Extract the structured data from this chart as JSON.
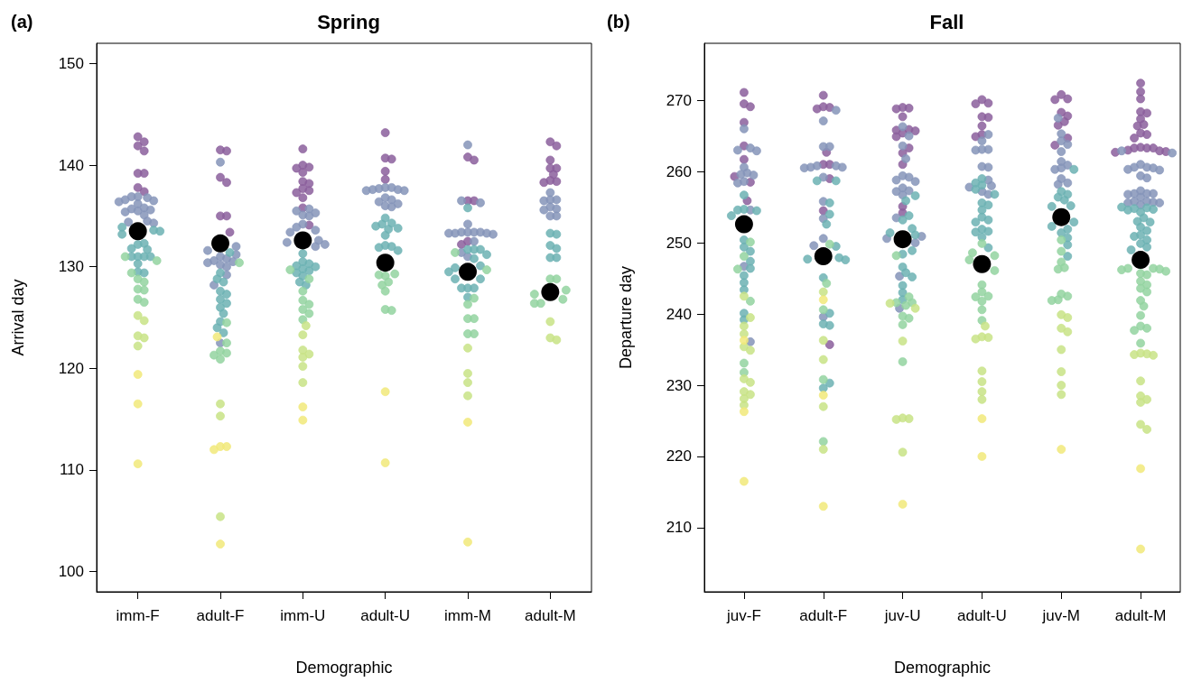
{
  "chart_data": [
    {
      "type": "scatter",
      "title": "Spring",
      "xlabel": "Demographic",
      "ylabel": "Arrival day",
      "annotations": [
        "(a)"
      ],
      "categories": [
        "imm-F",
        "adult-F",
        "imm-U",
        "adult-U",
        "imm-M",
        "adult-M"
      ],
      "ylim": [
        98,
        152
      ],
      "yticks": [
        100,
        110,
        120,
        130,
        140,
        150
      ],
      "grid": false,
      "marker": "circle",
      "series": [
        {
          "color": "#8b5f9c",
          "x": [
            "imm-F",
            "imm-F",
            "imm-F",
            "imm-F",
            "imm-F",
            "imm-F",
            "imm-F",
            "imm-F",
            "adult-F",
            "adult-F",
            "adult-F",
            "adult-F",
            "adult-F",
            "adult-F",
            "adult-F",
            "imm-U",
            "imm-U",
            "imm-U",
            "imm-U",
            "imm-U",
            "imm-U",
            "imm-U",
            "imm-U",
            "imm-U",
            "imm-U",
            "imm-U",
            "imm-U",
            "imm-U",
            "adult-U",
            "adult-U",
            "adult-U",
            "adult-U",
            "adult-U",
            "imm-M",
            "imm-M",
            "imm-M",
            "imm-M",
            "imm-M",
            "imm-M",
            "adult-M",
            "adult-M",
            "adult-M",
            "adult-M",
            "adult-M",
            "adult-M",
            "adult-M",
            "adult-M",
            "adult-M"
          ],
          "values": [
            142.8,
            142.3,
            141.9,
            141.4,
            139.2,
            139.2,
            137.8,
            137.4,
            141.5,
            141.4,
            138.8,
            138.3,
            135.0,
            135.0,
            133.4,
            141.6,
            140.0,
            139.8,
            139.7,
            139.3,
            138.4,
            138.2,
            137.7,
            137.5,
            137.3,
            136.8,
            135.8,
            134.1,
            143.2,
            140.7,
            140.6,
            139.4,
            138.6,
            140.8,
            140.5,
            136.5,
            136.5,
            132.5,
            132.2,
            142.3,
            141.9,
            140.5,
            139.7,
            139.7,
            139.1,
            138.5,
            138.4,
            138.3
          ]
        },
        {
          "color": "#8594b9",
          "x": [
            "imm-F",
            "imm-F",
            "imm-F",
            "imm-F",
            "imm-F",
            "imm-F",
            "imm-F",
            "imm-F",
            "imm-F",
            "imm-F",
            "imm-F",
            "imm-F",
            "imm-F",
            "imm-F",
            "imm-F",
            "imm-F",
            "adult-F",
            "adult-F",
            "adult-F",
            "adult-F",
            "adult-F",
            "adult-F",
            "adult-F",
            "adult-F",
            "adult-F",
            "adult-F",
            "adult-F",
            "adult-F",
            "adult-F",
            "adult-F",
            "imm-U",
            "imm-U",
            "imm-U",
            "imm-U",
            "imm-U",
            "imm-U",
            "imm-U",
            "imm-U",
            "imm-U",
            "imm-U",
            "imm-U",
            "imm-U",
            "imm-U",
            "adult-U",
            "adult-U",
            "adult-U",
            "adult-U",
            "adult-U",
            "adult-U",
            "adult-U",
            "adult-U",
            "adult-U",
            "adult-U",
            "adult-U",
            "adult-U",
            "adult-U",
            "imm-M",
            "imm-M",
            "imm-M",
            "imm-M",
            "imm-M",
            "imm-M",
            "imm-M",
            "imm-M",
            "imm-M",
            "imm-M",
            "imm-M",
            "imm-M",
            "imm-M",
            "imm-M",
            "imm-M",
            "adult-M",
            "adult-M",
            "adult-M",
            "adult-M",
            "adult-M",
            "adult-M",
            "adult-M",
            "adult-M",
            "adult-M"
          ],
          "values": [
            136.9,
            136.8,
            136.6,
            136.5,
            136.9,
            136.4,
            136.2,
            135.8,
            135.7,
            135.6,
            135.5,
            135.4,
            135.1,
            134.5,
            134.4,
            134.3,
            140.3,
            132.0,
            131.6,
            131.2,
            131.0,
            130.8,
            130.6,
            130.5,
            130.4,
            130.2,
            130.0,
            129.2,
            128.2,
            122.5,
            135.7,
            135.5,
            135.3,
            135.1,
            135.0,
            134.2,
            133.9,
            133.6,
            133.4,
            132.6,
            132.4,
            132.0,
            132.2,
            137.8,
            137.7,
            137.6,
            137.5,
            137.5,
            137.6,
            137.8,
            136.8,
            136.6,
            136.4,
            136.2,
            136.0,
            135.9,
            142.0,
            136.5,
            136.3,
            134.2,
            133.4,
            133.4,
            133.4,
            133.4,
            133.3,
            133.2,
            133.3,
            133.3,
            132.5,
            131.4,
            131.0,
            137.3,
            136.6,
            136.5,
            136.6,
            135.9,
            135.6,
            135.7,
            135.0,
            135.0
          ]
        },
        {
          "color": "#6cb2b3",
          "x": [
            "imm-F",
            "imm-F",
            "imm-F",
            "imm-F",
            "imm-F",
            "imm-F",
            "imm-F",
            "imm-F",
            "imm-F",
            "imm-F",
            "imm-F",
            "imm-F",
            "imm-F",
            "imm-F",
            "imm-F",
            "adult-F",
            "adult-F",
            "adult-F",
            "adult-F",
            "adult-F",
            "adult-F",
            "adult-F",
            "adult-F",
            "adult-F",
            "adult-F",
            "adult-F",
            "adult-F",
            "adult-F",
            "imm-U",
            "imm-U",
            "imm-U",
            "imm-U",
            "imm-U",
            "imm-U",
            "imm-U",
            "imm-U",
            "imm-U",
            "imm-U",
            "imm-U",
            "adult-U",
            "adult-U",
            "adult-U",
            "adult-U",
            "adult-U",
            "adult-U",
            "adult-U",
            "adult-U",
            "adult-U",
            "adult-U",
            "adult-U",
            "imm-M",
            "imm-M",
            "imm-M",
            "imm-M",
            "imm-M",
            "imm-M",
            "imm-M",
            "imm-M",
            "imm-M",
            "imm-M",
            "imm-M",
            "imm-M",
            "imm-M",
            "imm-M",
            "imm-M",
            "adult-M",
            "adult-M",
            "adult-M",
            "adult-M",
            "adult-M",
            "adult-M"
          ],
          "values": [
            133.9,
            133.6,
            133.5,
            133.2,
            132.3,
            132.2,
            131.8,
            131.7,
            131.0,
            131.0,
            131.0,
            131.0,
            130.3,
            129.5,
            129.4,
            131.4,
            129.4,
            128.8,
            128.5,
            127.6,
            127.3,
            126.8,
            126.4,
            126.0,
            125.4,
            124.6,
            124.0,
            123.5,
            131.3,
            130.5,
            130.3,
            130.1,
            130.0,
            129.8,
            129.6,
            129.4,
            129.1,
            128.5,
            128.2,
            134.8,
            134.3,
            134.2,
            134.0,
            133.8,
            133.7,
            133.1,
            132.1,
            132.0,
            131.9,
            131.6,
            135.8,
            131.7,
            131.7,
            131.7,
            131.2,
            130.8,
            130.1,
            129.9,
            129.5,
            128.8,
            128.8,
            127.9,
            127.9,
            127.9,
            127.0,
            133.3,
            133.2,
            132.1,
            131.8,
            130.9,
            130.9
          ]
        },
        {
          "color": "#93d3a0",
          "x": [
            "imm-F",
            "imm-F",
            "imm-F",
            "imm-F",
            "imm-F",
            "imm-F",
            "imm-F",
            "imm-F",
            "imm-F",
            "adult-F",
            "adult-F",
            "adult-F",
            "adult-F",
            "adult-F",
            "adult-F",
            "adult-F",
            "imm-U",
            "imm-U",
            "imm-U",
            "imm-U",
            "imm-U",
            "imm-U",
            "imm-U",
            "imm-U",
            "adult-U",
            "adult-U",
            "adult-U",
            "adult-U",
            "adult-U",
            "adult-U",
            "adult-U",
            "adult-U",
            "imm-M",
            "imm-M",
            "imm-M",
            "imm-M",
            "imm-M",
            "imm-M",
            "imm-M",
            "imm-M",
            "adult-M",
            "adult-M",
            "adult-M",
            "adult-M",
            "adult-M",
            "adult-M",
            "adult-M"
          ],
          "values": [
            131.0,
            130.6,
            129.4,
            128.8,
            128.5,
            127.8,
            127.7,
            126.8,
            126.5,
            130.4,
            124.5,
            122.5,
            121.7,
            121.5,
            121.3,
            120.9,
            129.7,
            128.8,
            127.6,
            126.7,
            126.3,
            125.8,
            125.4,
            124.8,
            129.3,
            129.2,
            129.1,
            128.5,
            128.2,
            127.6,
            125.8,
            125.7,
            131.4,
            129.7,
            126.9,
            126.3,
            124.9,
            124.9,
            123.4,
            123.4,
            128.8,
            128.8,
            127.7,
            127.3,
            126.8,
            126.4,
            126.4
          ]
        },
        {
          "color": "#c8e386",
          "x": [
            "imm-F",
            "imm-F",
            "imm-F",
            "imm-F",
            "imm-F",
            "adult-F",
            "adult-F",
            "adult-F",
            "imm-U",
            "imm-U",
            "imm-U",
            "imm-U",
            "imm-U",
            "imm-U",
            "imm-U",
            "imm-M",
            "imm-M",
            "imm-M",
            "imm-M",
            "adult-M",
            "adult-M",
            "adult-M"
          ],
          "values": [
            125.2,
            124.7,
            123.2,
            123.0,
            122.2,
            116.5,
            115.3,
            105.4,
            124.2,
            123.3,
            121.8,
            121.4,
            121.1,
            120.2,
            118.6,
            122.0,
            119.5,
            118.6,
            117.3,
            124.6,
            123.0,
            122.8
          ]
        },
        {
          "color": "#f1e97a",
          "x": [
            "imm-F",
            "imm-F",
            "imm-F",
            "adult-F",
            "adult-F",
            "adult-F",
            "adult-F",
            "adult-F",
            "imm-U",
            "imm-U",
            "adult-U",
            "adult-U",
            "imm-M",
            "imm-M"
          ],
          "values": [
            119.4,
            116.5,
            110.6,
            123.1,
            112.3,
            112.0,
            112.3,
            102.7,
            116.2,
            114.9,
            117.7,
            110.7,
            114.7,
            102.9
          ]
        },
        {
          "type": "bubble",
          "color": "#000000",
          "x": [
            "imm-F",
            "adult-F",
            "imm-U",
            "adult-U",
            "imm-M",
            "adult-M"
          ],
          "values": [
            133.5,
            132.3,
            132.6,
            130.4,
            129.5,
            127.5
          ],
          "sizes": [
            1,
            1,
            1,
            1,
            1,
            1
          ]
        }
      ]
    },
    {
      "type": "scatter",
      "title": "Fall",
      "xlabel": "Demographic",
      "ylabel": "Departure day",
      "annotations": [
        "(b)"
      ],
      "categories": [
        "juv-F",
        "adult-F",
        "juv-U",
        "adult-U",
        "juv-M",
        "adult-M"
      ],
      "ylim": [
        201,
        278
      ],
      "yticks": [
        210,
        220,
        230,
        240,
        250,
        260,
        270
      ],
      "grid": false,
      "marker": "circle",
      "series": [
        {
          "color": "#8b5f9c",
          "x": [
            "juv-F",
            "juv-F",
            "juv-F",
            "juv-F",
            "juv-F",
            "juv-F",
            "juv-F",
            "juv-F",
            "juv-F",
            "adult-F",
            "adult-F",
            "adult-F",
            "adult-F",
            "adult-F",
            "adult-F",
            "adult-F",
            "adult-F",
            "adult-F",
            "adult-F",
            "juv-U",
            "juv-U",
            "juv-U",
            "juv-U",
            "juv-U",
            "juv-U",
            "juv-U",
            "juv-U",
            "juv-U",
            "juv-U",
            "juv-U",
            "juv-U",
            "juv-U",
            "juv-U",
            "adult-U",
            "adult-U",
            "adult-U",
            "adult-U",
            "adult-U",
            "adult-U",
            "adult-U",
            "adult-U",
            "juv-M",
            "juv-M",
            "juv-M",
            "juv-M",
            "juv-M",
            "juv-M",
            "juv-M",
            "juv-M",
            "juv-M",
            "adult-M",
            "adult-M",
            "adult-M",
            "adult-M",
            "adult-M",
            "adult-M",
            "adult-M",
            "adult-M",
            "adult-M",
            "adult-M",
            "adult-M",
            "adult-M",
            "adult-M",
            "adult-M",
            "adult-M",
            "adult-M",
            "adult-M",
            "adult-M",
            "adult-M"
          ],
          "values": [
            271.1,
            269.5,
            269.1,
            266.9,
            263.6,
            261.7,
            259.3,
            258.5,
            255.9,
            270.7,
            269.0,
            268.8,
            269.1,
            262.7,
            261.0,
            261.0,
            259.0,
            254.5,
            235.7,
            269.0,
            268.9,
            268.8,
            267.7,
            265.9,
            265.7,
            265.4,
            264.9,
            265.8,
            263.3,
            262.6,
            261.0,
            255.1,
            254.2,
            270.1,
            269.6,
            269.5,
            267.6,
            267.7,
            266.4,
            265.2,
            264.9,
            270.8,
            270.2,
            270.1,
            268.3,
            267.8,
            267.0,
            266.5,
            264.7,
            263.7,
            272.4,
            271.2,
            270.2,
            268.4,
            268.2,
            267.4,
            266.6,
            266.4,
            265.4,
            265.2,
            264.7,
            263.4,
            263.3,
            262.9,
            262.7,
            263.3,
            262.8,
            263.0,
            263.3
          ]
        },
        {
          "color": "#8594b9",
          "x": [
            "juv-F",
            "juv-F",
            "juv-F",
            "juv-F",
            "juv-F",
            "juv-F",
            "juv-F",
            "juv-F",
            "juv-F",
            "juv-F",
            "juv-F",
            "juv-F",
            "juv-F",
            "adult-F",
            "adult-F",
            "adult-F",
            "adult-F",
            "adult-F",
            "adult-F",
            "adult-F",
            "adult-F",
            "adult-F",
            "adult-F",
            "adult-F",
            "adult-F",
            "adult-F",
            "adult-F",
            "adult-F",
            "juv-U",
            "juv-U",
            "juv-U",
            "juv-U",
            "juv-U",
            "juv-U",
            "juv-U",
            "juv-U",
            "juv-U",
            "juv-U",
            "juv-U",
            "juv-U",
            "juv-U",
            "juv-U",
            "juv-U",
            "juv-U",
            "juv-U",
            "juv-U",
            "adult-U",
            "adult-U",
            "adult-U",
            "adult-U",
            "adult-U",
            "adult-U",
            "adult-U",
            "adult-U",
            "adult-U",
            "adult-U",
            "adult-U",
            "adult-U",
            "juv-M",
            "juv-M",
            "juv-M",
            "juv-M",
            "juv-M",
            "juv-M",
            "juv-M",
            "juv-M",
            "juv-M",
            "juv-M",
            "juv-M",
            "juv-M",
            "adult-M",
            "adult-M",
            "adult-M",
            "adult-M",
            "adult-M",
            "adult-M",
            "adult-M",
            "adult-M",
            "adult-M",
            "adult-M",
            "adult-M",
            "adult-M",
            "adult-M",
            "adult-M",
            "adult-M",
            "adult-M",
            "adult-M",
            "adult-M",
            "adult-M",
            "adult-M",
            "adult-M",
            "adult-M"
          ],
          "values": [
            266.0,
            263.0,
            262.9,
            263.3,
            260.6,
            259.8,
            259.6,
            259.5,
            258.6,
            258.4,
            254.6,
            246.7,
            236.1,
            268.6,
            267.1,
            263.5,
            263.5,
            260.8,
            260.6,
            260.5,
            260.8,
            260.6,
            259.2,
            255.8,
            253.4,
            250.6,
            249.6,
            239.6,
            266.3,
            265.0,
            263.6,
            261.8,
            259.4,
            258.8,
            258.6,
            259.2,
            257.7,
            257.2,
            257.3,
            256.7,
            253.5,
            250.6,
            250.0,
            250.9,
            245.3,
            240.8,
            265.2,
            264.3,
            263.1,
            263.0,
            263.1,
            260.7,
            260.6,
            258.8,
            258.0,
            257.8,
            257.2,
            256.8,
            267.5,
            265.3,
            264.3,
            263.8,
            262.8,
            261.4,
            260.9,
            260.5,
            260.3,
            259.0,
            258.2,
            258.4,
            262.6,
            262.9,
            260.6,
            260.6,
            260.5,
            260.3,
            260.2,
            261.0,
            259.4,
            259.1,
            257.3,
            256.8,
            256.9,
            256.9,
            256.4,
            256.9,
            255.8,
            255.6,
            255.7,
            255.3,
            255.8,
            255.6
          ]
        },
        {
          "color": "#6cb2b3",
          "x": [
            "juv-F",
            "juv-F",
            "juv-F",
            "juv-F",
            "juv-F",
            "juv-F",
            "juv-F",
            "juv-F",
            "juv-F",
            "juv-F",
            "juv-F",
            "juv-F",
            "juv-F",
            "juv-F",
            "juv-F",
            "adult-F",
            "adult-F",
            "adult-F",
            "adult-F",
            "adult-F",
            "adult-F",
            "adult-F",
            "adult-F",
            "adult-F",
            "adult-F",
            "adult-F",
            "adult-F",
            "adult-F",
            "adult-F",
            "adult-F",
            "juv-U",
            "juv-U",
            "juv-U",
            "juv-U",
            "juv-U",
            "juv-U",
            "juv-U",
            "juv-U",
            "juv-U",
            "juv-U",
            "juv-U",
            "juv-U",
            "juv-U",
            "juv-U",
            "juv-U",
            "adult-U",
            "adult-U",
            "adult-U",
            "adult-U",
            "adult-U",
            "adult-U",
            "adult-U",
            "adult-U",
            "adult-U",
            "adult-U",
            "adult-U",
            "adult-U",
            "adult-U",
            "adult-U",
            "adult-U",
            "adult-U",
            "juv-M",
            "juv-M",
            "juv-M",
            "juv-M",
            "juv-M",
            "juv-M",
            "juv-M",
            "juv-M",
            "juv-M",
            "juv-M",
            "juv-M",
            "juv-M",
            "juv-M",
            "juv-M",
            "adult-M",
            "adult-M",
            "adult-M",
            "adult-M",
            "adult-M",
            "adult-M",
            "adult-M",
            "adult-M",
            "adult-M",
            "adult-M",
            "adult-M",
            "adult-M",
            "adult-M",
            "adult-M",
            "adult-M",
            "adult-M",
            "adult-M"
          ],
          "values": [
            256.7,
            254.7,
            254.6,
            254.5,
            253.8,
            250.4,
            249.4,
            248.8,
            247.4,
            246.4,
            245.4,
            244.4,
            243.4,
            240.1,
            239.2,
            258.7,
            258.7,
            255.6,
            254.0,
            252.6,
            249.5,
            247.9,
            247.6,
            247.7,
            245.1,
            240.1,
            238.4,
            238.6,
            230.3,
            229.6,
            256.6,
            255.9,
            253.8,
            253.2,
            252.0,
            251.4,
            251.1,
            248.9,
            248.4,
            246.6,
            245.8,
            245.2,
            244.0,
            243.0,
            242.0,
            259.0,
            258.4,
            258.1,
            257.5,
            256.8,
            255.6,
            255.3,
            254.6,
            253.6,
            253.2,
            252.9,
            251.9,
            251.6,
            251.5,
            250.8,
            249.3,
            260.3,
            257.2,
            256.8,
            256.4,
            256.0,
            255.2,
            255.1,
            252.9,
            252.3,
            251.9,
            251.4,
            250.7,
            249.7,
            248.1,
            254.9,
            255.0,
            254.7,
            254.8,
            254.6,
            254.3,
            253.5,
            253.0,
            252.9,
            252.2,
            251.7,
            251.1,
            250.9,
            250.4,
            249.9,
            249.4,
            249.0
          ]
        },
        {
          "color": "#93d3a0",
          "x": [
            "juv-F",
            "juv-F",
            "juv-F",
            "juv-F",
            "juv-F",
            "juv-F",
            "adult-F",
            "adult-F",
            "adult-F",
            "adult-F",
            "adult-F",
            "juv-U",
            "juv-U",
            "juv-U",
            "juv-U",
            "juv-U",
            "juv-U",
            "juv-U",
            "juv-U",
            "juv-U",
            "adult-U",
            "adult-U",
            "adult-U",
            "adult-U",
            "adult-U",
            "adult-U",
            "adult-U",
            "adult-U",
            "adult-U",
            "adult-U",
            "adult-U",
            "adult-U",
            "juv-M",
            "juv-M",
            "juv-M",
            "juv-M",
            "juv-M",
            "juv-M",
            "juv-M",
            "juv-M",
            "juv-M",
            "adult-M",
            "adult-M",
            "adult-M",
            "adult-M",
            "adult-M",
            "adult-M",
            "adult-M",
            "adult-M",
            "adult-M",
            "adult-M",
            "adult-M",
            "adult-M",
            "adult-M",
            "adult-M",
            "adult-M",
            "adult-M",
            "adult-M",
            "adult-M"
          ],
          "values": [
            250.1,
            248.1,
            246.3,
            241.8,
            233.1,
            231.8,
            249.8,
            244.3,
            240.6,
            230.8,
            222.1,
            248.2,
            241.6,
            241.6,
            241.2,
            242.4,
            239.7,
            239.4,
            238.5,
            233.3,
            249.9,
            248.6,
            248.2,
            247.6,
            246.1,
            244.1,
            243.1,
            242.5,
            242.4,
            241.8,
            240.6,
            239.1,
            250.4,
            248.8,
            247.3,
            246.5,
            246.3,
            242.8,
            242.5,
            242.0,
            241.9,
            246.4,
            246.0,
            246.2,
            246.3,
            246.4,
            245.7,
            245.5,
            244.6,
            244.1,
            243.6,
            243.1,
            241.9,
            241.1,
            239.8,
            238.3,
            238.0,
            237.7,
            235.9
          ]
        },
        {
          "color": "#c8e386",
          "x": [
            "juv-F",
            "juv-F",
            "juv-F",
            "juv-F",
            "juv-F",
            "juv-F",
            "juv-F",
            "juv-F",
            "juv-F",
            "juv-F",
            "juv-F",
            "juv-F",
            "adult-F",
            "adult-F",
            "adult-F",
            "adult-F",
            "adult-F",
            "juv-U",
            "juv-U",
            "juv-U",
            "juv-U",
            "juv-U",
            "juv-U",
            "juv-U",
            "adult-U",
            "adult-U",
            "adult-U",
            "adult-U",
            "adult-U",
            "adult-U",
            "adult-U",
            "adult-U",
            "juv-M",
            "juv-M",
            "juv-M",
            "juv-M",
            "juv-M",
            "juv-M",
            "juv-M",
            "juv-M",
            "adult-M",
            "adult-M",
            "adult-M",
            "adult-M",
            "adult-M",
            "adult-M",
            "adult-M",
            "adult-M",
            "adult-M",
            "adult-M"
          ],
          "values": [
            242.5,
            239.5,
            238.3,
            237.2,
            235.4,
            234.9,
            230.9,
            230.4,
            229.1,
            228.7,
            228.1,
            227.2,
            243.1,
            236.3,
            233.6,
            227.0,
            221.0,
            241.5,
            240.8,
            236.2,
            225.4,
            225.2,
            225.3,
            220.6,
            238.3,
            236.8,
            236.5,
            236.7,
            232.0,
            230.5,
            229.1,
            228.0,
            239.9,
            239.5,
            238.0,
            237.5,
            235.0,
            231.9,
            230.0,
            228.7,
            234.4,
            234.2,
            234.3,
            234.5,
            230.6,
            228.5,
            228.0,
            227.6,
            224.5,
            223.8
          ]
        },
        {
          "color": "#f1e97a",
          "x": [
            "juv-F",
            "juv-F",
            "juv-F",
            "adult-F",
            "adult-F",
            "adult-F",
            "juv-U",
            "adult-U",
            "adult-U",
            "juv-M",
            "adult-M",
            "adult-M"
          ],
          "values": [
            236.3,
            226.3,
            216.5,
            242.0,
            228.6,
            213.0,
            213.3,
            225.3,
            220.0,
            221.0,
            218.3,
            207.0
          ]
        },
        {
          "type": "bubble",
          "color": "#000000",
          "x": [
            "juv-F",
            "adult-F",
            "juv-U",
            "adult-U",
            "juv-M",
            "adult-M"
          ],
          "values": [
            252.6,
            248.1,
            250.5,
            247.0,
            253.6,
            247.6
          ],
          "sizes": [
            1,
            1,
            1,
            1,
            1,
            1
          ]
        }
      ]
    }
  ]
}
